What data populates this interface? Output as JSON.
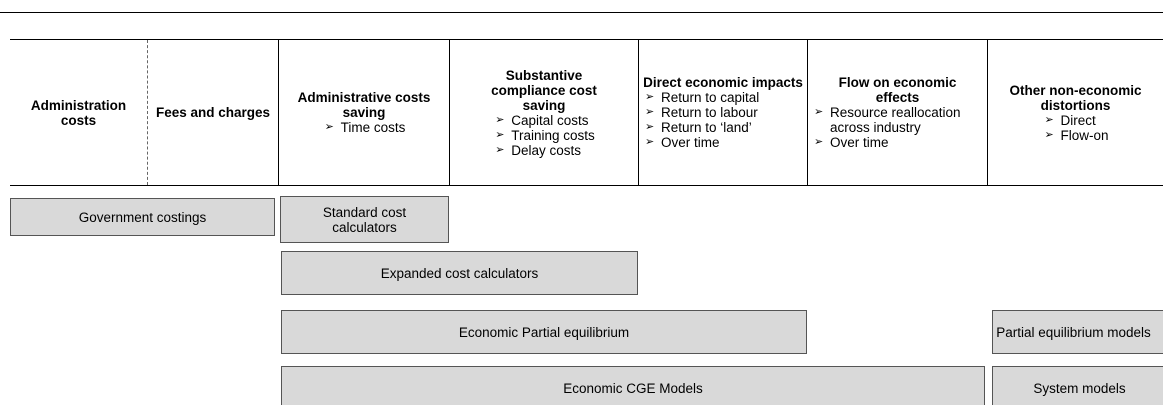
{
  "columns": [
    {
      "title": "Administration costs",
      "items": []
    },
    {
      "title": "Fees and charges",
      "items": []
    },
    {
      "title": "Administrative costs saving",
      "items": [
        "Time costs"
      ]
    },
    {
      "title": "Substantive compliance cost saving",
      "items": [
        "Capital costs",
        "Training costs",
        "Delay costs"
      ]
    },
    {
      "title": "Direct economic impacts",
      "items": [
        "Return to capital",
        "Return to labour",
        "Return to ‘land’",
        "Over time"
      ]
    },
    {
      "title": "Flow on economic effects",
      "items": [
        "Resource reallocation across industry",
        "Over time"
      ]
    },
    {
      "title": "Other non-economic distortions",
      "items": [
        "Direct",
        "Flow-on"
      ]
    }
  ],
  "boxes": [
    {
      "label": "Government costings"
    },
    {
      "label": "Standard cost calculators"
    },
    {
      "label": "Expanded cost calculators"
    },
    {
      "label": "Economic Partial equilibrium"
    },
    {
      "label": "Partial equilibrium models"
    },
    {
      "label": "Economic CGE Models"
    },
    {
      "label": "System models"
    }
  ]
}
